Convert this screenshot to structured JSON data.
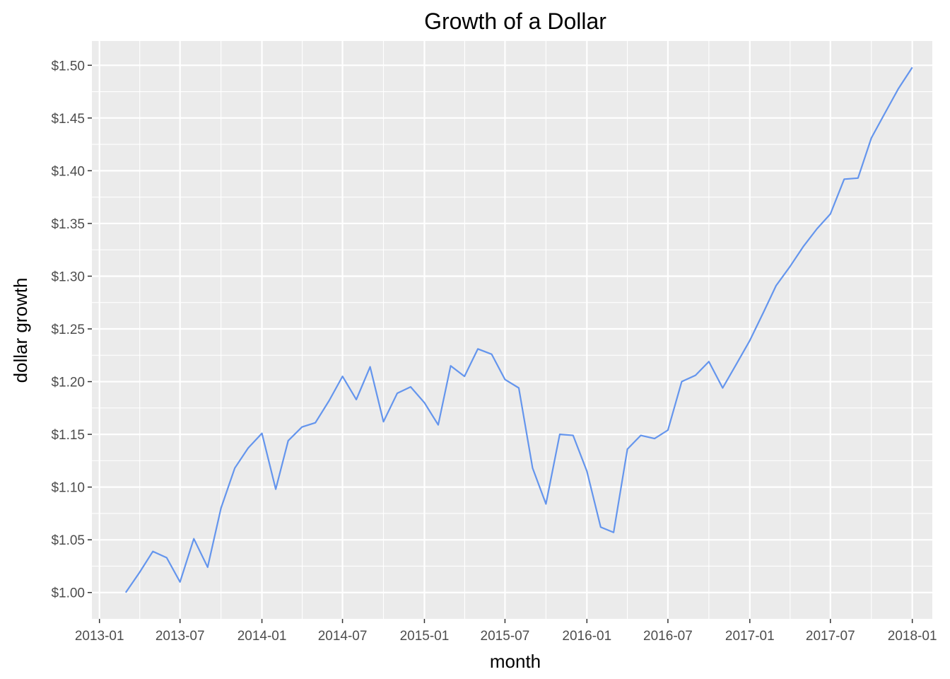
{
  "chart_data": {
    "type": "line",
    "title": "Growth of a Dollar",
    "xlabel": "month",
    "ylabel": "dollar growth",
    "xlim": [
      "2012-12-15",
      "2018-02-15"
    ],
    "ylim": [
      0.975,
      1.523
    ],
    "grid": true,
    "legend": "none",
    "colors": {
      "panel": "#EBEBEB",
      "grid": "#FFFFFF",
      "line": "#6495ED",
      "tick": "#4D4D4D"
    },
    "x_ticks": [
      "2013-01",
      "2013-07",
      "2014-01",
      "2014-07",
      "2015-01",
      "2015-07",
      "2016-01",
      "2016-07",
      "2017-01",
      "2017-07",
      "2018-01"
    ],
    "y_ticks": [
      1.0,
      1.05,
      1.1,
      1.15,
      1.2,
      1.25,
      1.3,
      1.35,
      1.4,
      1.45,
      1.5
    ],
    "y_tick_labels": [
      "$1.00",
      "$1.05",
      "$1.10",
      "$1.15",
      "$1.20",
      "$1.25",
      "$1.30",
      "$1.35",
      "$1.40",
      "$1.45",
      "$1.50"
    ],
    "series": [
      {
        "x": [
          "2013-03-01",
          "2013-04-01",
          "2013-05-01",
          "2013-06-01",
          "2013-07-01",
          "2013-08-01",
          "2013-09-01",
          "2013-10-01",
          "2013-11-01",
          "2013-12-01",
          "2014-01-01",
          "2014-02-01",
          "2014-03-01",
          "2014-04-01",
          "2014-05-01",
          "2014-06-01",
          "2014-07-01",
          "2014-08-01",
          "2014-09-01",
          "2014-10-01",
          "2014-11-01",
          "2014-12-01",
          "2015-01-01",
          "2015-02-01",
          "2015-03-01",
          "2015-04-01",
          "2015-05-01",
          "2015-06-01",
          "2015-07-01",
          "2015-08-01",
          "2015-09-01",
          "2015-10-01",
          "2015-11-01",
          "2015-12-01",
          "2016-01-01",
          "2016-02-01",
          "2016-03-01",
          "2016-04-01",
          "2016-05-01",
          "2016-06-01",
          "2016-07-01",
          "2016-08-01",
          "2016-09-01",
          "2016-10-01",
          "2016-11-01",
          "2016-12-01",
          "2017-01-01",
          "2017-02-01",
          "2017-03-01",
          "2017-04-01",
          "2017-05-01",
          "2017-06-01",
          "2017-07-01",
          "2017-08-01",
          "2017-09-01",
          "2017-10-01",
          "2017-11-01",
          "2017-12-01",
          "2018-01-01"
        ],
        "values": [
          1.0,
          1.019,
          1.039,
          1.033,
          1.01,
          1.051,
          1.024,
          1.08,
          1.118,
          1.137,
          1.151,
          1.098,
          1.144,
          1.157,
          1.161,
          1.182,
          1.205,
          1.183,
          1.214,
          1.162,
          1.189,
          1.195,
          1.18,
          1.159,
          1.215,
          1.205,
          1.231,
          1.226,
          1.202,
          1.194,
          1.118,
          1.084,
          1.15,
          1.149,
          1.115,
          1.062,
          1.057,
          1.136,
          1.149,
          1.146,
          1.154,
          1.2,
          1.206,
          1.219,
          1.194,
          1.216,
          1.239,
          1.266,
          1.291,
          1.309,
          1.328,
          1.345,
          1.359,
          1.392,
          1.393,
          1.431,
          1.455,
          1.478,
          1.498
        ]
      }
    ]
  }
}
